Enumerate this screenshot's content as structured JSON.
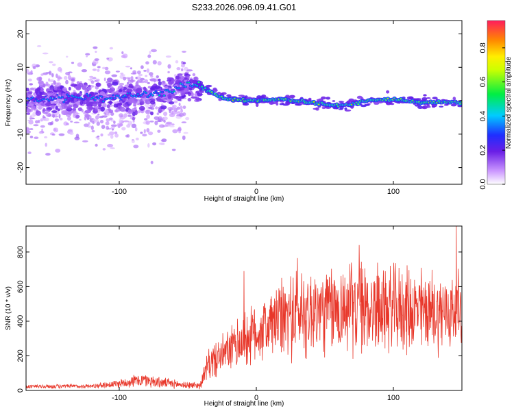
{
  "title": "S233.2026.096.09.41.G01",
  "chart_data": [
    {
      "type": "heatmap",
      "name": "spectrogram",
      "xlabel": "Height of straight line (km)",
      "ylabel": "Frequency (Hz)",
      "xlim": [
        -168,
        150
      ],
      "ylim": [
        -25,
        24
      ],
      "xticks": [
        -100,
        0,
        100
      ],
      "xtick_labels": [
        "-100",
        "0",
        "100"
      ],
      "yticks": [
        20,
        10,
        0,
        -10,
        -20
      ],
      "ytick_labels": [
        "20",
        "10",
        "0",
        "-10",
        "-20"
      ],
      "colorbar": {
        "label": "Normalized spectral amplitude",
        "range": [
          0,
          0.96
        ],
        "ticks": [
          0.0,
          0.2,
          0.4,
          0.6,
          0.8
        ],
        "tick_labels": [
          "0.0",
          "0.2",
          "0.4",
          "0.6",
          "0.8"
        ]
      },
      "ridge": {
        "x": [
          -168,
          -150,
          -120,
          -100,
          -80,
          -60,
          -50,
          -45,
          -40,
          -35,
          -30,
          -25,
          -20,
          0,
          20,
          40,
          60,
          70,
          80,
          100,
          120,
          140,
          150
        ],
        "y": [
          0,
          1,
          1,
          1,
          2,
          3,
          5,
          5,
          4,
          3,
          2,
          1,
          0.5,
          0,
          0.5,
          -0.5,
          -1.5,
          -1,
          0,
          0.5,
          -0.5,
          -0.5,
          -0.5
        ],
        "amplitude": [
          0.45,
          0.45,
          0.5,
          0.45,
          0.5,
          0.55,
          0.5,
          0.5,
          0.7,
          0.8,
          0.85,
          0.9,
          0.92,
          0.92,
          0.9,
          0.85,
          0.8,
          0.8,
          0.85,
          0.85,
          0.85,
          0.85,
          0.8
        ]
      }
    },
    {
      "type": "line",
      "name": "snr",
      "xlabel": "Height of straight line (km)",
      "ylabel": "SNR (10 * v/v)",
      "xlim": [
        -168,
        150
      ],
      "ylim": [
        0,
        950
      ],
      "xticks": [
        -100,
        0,
        100
      ],
      "xtick_labels": [
        "-100",
        "0",
        "100"
      ],
      "yticks": [
        0,
        200,
        400,
        600,
        800
      ],
      "ytick_labels": [
        "0",
        "200",
        "400",
        "600",
        "800"
      ],
      "color": "#e8372a",
      "envelope": {
        "x": [
          -168,
          -120,
          -100,
          -90,
          -80,
          -70,
          -50,
          -41,
          -35,
          -20,
          -10,
          0,
          10,
          20,
          30,
          50,
          60,
          75,
          100,
          120,
          140,
          150
        ],
        "mean": [
          22,
          25,
          40,
          55,
          60,
          45,
          30,
          30,
          150,
          230,
          290,
          330,
          380,
          420,
          450,
          460,
          470,
          480,
          470,
          460,
          450,
          480
        ],
        "spread": [
          12,
          12,
          25,
          35,
          40,
          30,
          20,
          20,
          90,
          120,
          160,
          170,
          190,
          230,
          260,
          250,
          250,
          260,
          240,
          240,
          220,
          200
        ]
      },
      "peaks": [
        {
          "x": 146,
          "y": 950
        },
        {
          "x": 75,
          "y": 840
        },
        {
          "x": 30,
          "y": 765
        },
        {
          "x": -9,
          "y": 690
        }
      ]
    }
  ]
}
